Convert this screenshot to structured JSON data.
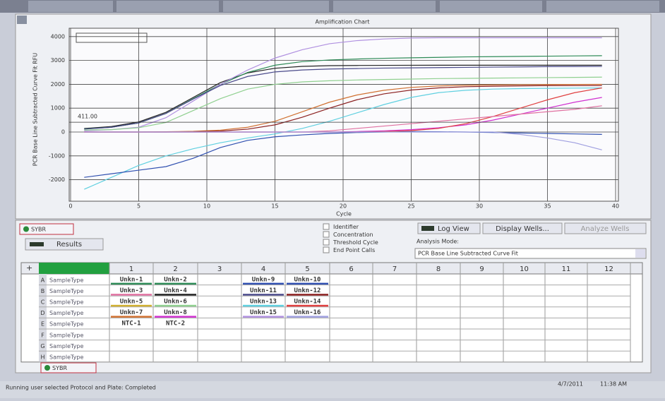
{
  "chart_data": {
    "type": "line",
    "title": "Amplification Chart",
    "xlabel": "Cycle",
    "ylabel": "PCR Base Line Subtracted Curve Fit RFU",
    "x": [
      1,
      3,
      5,
      7,
      9,
      11,
      13,
      15,
      17,
      19,
      21,
      23,
      25,
      27,
      29,
      31,
      33,
      35,
      37,
      39
    ],
    "series": [
      {
        "color": "#222222",
        "values": [
          149,
          229,
          422,
          826,
          1450,
          2074,
          2479,
          2673,
          2751,
          2781,
          2790,
          2795,
          2798,
          2800,
          2800,
          2800,
          2800,
          2800,
          2800,
          2800
        ]
      },
      {
        "color": "#2e8b57",
        "values": [
          130,
          200,
          380,
          780,
          1400,
          2000,
          2500,
          2800,
          2950,
          3020,
          3060,
          3090,
          3110,
          3130,
          3150,
          3160,
          3170,
          3180,
          3190,
          3200
        ]
      },
      {
        "color": "#b090e0",
        "values": [
          50,
          100,
          200,
          600,
          1300,
          2000,
          2600,
          3100,
          3450,
          3700,
          3830,
          3900,
          3940,
          3950,
          3950,
          3950,
          3950,
          3950,
          3950,
          3950
        ]
      },
      {
        "color": "#4a4a8a",
        "values": [
          120,
          200,
          380,
          780,
          1380,
          1950,
          2330,
          2520,
          2600,
          2640,
          2660,
          2680,
          2690,
          2700,
          2710,
          2720,
          2730,
          2740,
          2745,
          2750
        ]
      },
      {
        "color": "#90d090",
        "values": [
          80,
          100,
          180,
          400,
          900,
          1400,
          1800,
          2000,
          2100,
          2150,
          2180,
          2200,
          2220,
          2240,
          2250,
          2260,
          2270,
          2280,
          2290,
          2300
        ]
      },
      {
        "color": "#d07030",
        "values": [
          0,
          0,
          0,
          10,
          30,
          80,
          200,
          450,
          850,
          1250,
          1550,
          1750,
          1870,
          1930,
          1960,
          1975,
          1985,
          1990,
          1995,
          2000
        ]
      },
      {
        "color": "#8b2020",
        "values": [
          0,
          0,
          0,
          0,
          10,
          40,
          120,
          300,
          620,
          1000,
          1350,
          1600,
          1760,
          1850,
          1900,
          1920,
          1935,
          1945,
          1950,
          1950
        ]
      },
      {
        "color": "#60d0e0",
        "values": [
          -2400,
          -1900,
          -1400,
          -1000,
          -700,
          -450,
          -250,
          -80,
          150,
          450,
          800,
          1150,
          1450,
          1650,
          1750,
          1800,
          1820,
          1830,
          1840,
          1850
        ]
      },
      {
        "color": "#3050b0",
        "values": [
          -1900,
          -1750,
          -1600,
          -1450,
          -1100,
          -650,
          -350,
          -200,
          -120,
          -60,
          -20,
          0,
          20,
          10,
          0,
          -20,
          -40,
          -60,
          -80,
          -100
        ]
      },
      {
        "color": "#d030d0",
        "values": [
          0,
          0,
          0,
          0,
          0,
          0,
          0,
          0,
          0,
          0,
          20,
          50,
          100,
          180,
          300,
          500,
          750,
          1000,
          1250,
          1450
        ]
      },
      {
        "color": "#e04040",
        "values": [
          0,
          0,
          0,
          0,
          0,
          0,
          0,
          0,
          0,
          0,
          0,
          20,
          60,
          150,
          350,
          650,
          1000,
          1350,
          1650,
          1850
        ]
      },
      {
        "color": "#e070a0",
        "values": [
          0,
          0,
          0,
          0,
          0,
          0,
          0,
          0,
          0,
          50,
          150,
          250,
          350,
          450,
          550,
          650,
          750,
          850,
          950,
          1100
        ]
      },
      {
        "color": "#a0a0e0",
        "values": [
          0,
          0,
          0,
          0,
          0,
          0,
          0,
          0,
          0,
          0,
          0,
          0,
          0,
          0,
          0,
          0,
          -100,
          -250,
          -450,
          -750
        ]
      }
    ],
    "threshold": {
      "value": 411,
      "label": "411.00"
    },
    "xlim": [
      0,
      40
    ],
    "ylim": [
      -2900,
      4350
    ],
    "xticks": [
      0,
      5,
      10,
      15,
      20,
      25,
      30,
      35,
      40
    ],
    "yticks": [
      -2000,
      -1000,
      0,
      1000,
      2000,
      3000,
      4000
    ],
    "grid": true
  },
  "controls": {
    "fluor": "SYBR",
    "results": "Results",
    "checkboxes": [
      "Identifier",
      "Concentration",
      "Threshold Cycle",
      "End Point Calls"
    ],
    "log_view": "Log View",
    "display_wells": "Display Wells...",
    "analyze_wells": "Analyze Wells",
    "analysis_mode_label": "Analysis Mode:",
    "analysis_mode": "PCR Base Line Subtracted Curve Fit"
  },
  "plate": {
    "columns": [
      "1",
      "2",
      "3",
      "4",
      "5",
      "6",
      "7",
      "8",
      "9",
      "10",
      "11",
      "12"
    ],
    "rows": [
      {
        "letter": "A",
        "type": "SampleType",
        "wells": [
          "Unkn-1",
          "Unkn-2",
          null,
          "Unkn-9",
          "Unkn-10",
          null,
          null,
          null,
          null,
          null,
          null,
          null
        ],
        "colors": [
          "#2e8b57",
          "#2e8b57",
          null,
          "#3050b0",
          "#3050b0",
          null,
          null,
          null,
          null,
          null,
          null,
          null
        ]
      },
      {
        "letter": "B",
        "type": "SampleType",
        "wells": [
          "Unkn-3",
          "Unkn-4",
          null,
          "Unkn-11",
          "Unkn-12",
          null,
          null,
          null,
          null,
          null,
          null,
          null
        ],
        "colors": [
          "#e070a0",
          "#222222",
          null,
          "#4a4a8a",
          "#8b2020",
          null,
          null,
          null,
          null,
          null,
          null,
          null
        ]
      },
      {
        "letter": "C",
        "type": "SampleType",
        "wells": [
          "Unkn-5",
          "Unkn-6",
          null,
          "Unkn-13",
          "Unkn-14",
          null,
          null,
          null,
          null,
          null,
          null,
          null
        ],
        "colors": [
          "#d0b030",
          "#90d090",
          null,
          "#60d0e0",
          "#e04040",
          null,
          null,
          null,
          null,
          null,
          null,
          null
        ]
      },
      {
        "letter": "D",
        "type": "SampleType",
        "wells": [
          "Unkn-7",
          "Unkn-8",
          null,
          "Unkn-15",
          "Unkn-16",
          null,
          null,
          null,
          null,
          null,
          null,
          null
        ],
        "colors": [
          "#d07030",
          "#d030d0",
          null,
          "#b090e0",
          "#a0a0e0",
          null,
          null,
          null,
          null,
          null,
          null,
          null
        ]
      },
      {
        "letter": "E",
        "type": "SampleType",
        "wells": [
          "NTC-1",
          "NTC-2",
          null,
          null,
          null,
          null,
          null,
          null,
          null,
          null,
          null,
          null
        ],
        "colors": [
          null,
          null,
          null,
          null,
          null,
          null,
          null,
          null,
          null,
          null,
          null,
          null
        ]
      },
      {
        "letter": "F",
        "type": "SampleType",
        "wells": [
          null,
          null,
          null,
          null,
          null,
          null,
          null,
          null,
          null,
          null,
          null,
          null
        ],
        "colors": [
          null,
          null,
          null,
          null,
          null,
          null,
          null,
          null,
          null,
          null,
          null,
          null
        ]
      },
      {
        "letter": "G",
        "type": "SampleType",
        "wells": [
          null,
          null,
          null,
          null,
          null,
          null,
          null,
          null,
          null,
          null,
          null,
          null
        ],
        "colors": [
          null,
          null,
          null,
          null,
          null,
          null,
          null,
          null,
          null,
          null,
          null,
          null
        ]
      },
      {
        "letter": "H",
        "type": "SampleType",
        "wells": [
          null,
          null,
          null,
          null,
          null,
          null,
          null,
          null,
          null,
          null,
          null,
          null
        ],
        "colors": [
          null,
          null,
          null,
          null,
          null,
          null,
          null,
          null,
          null,
          null,
          null,
          null
        ]
      }
    ],
    "tab": "SYBR"
  },
  "status": {
    "message": "Running user selected Protocol and Plate: Completed",
    "date": "4/7/2011",
    "time": "11:38 AM"
  }
}
